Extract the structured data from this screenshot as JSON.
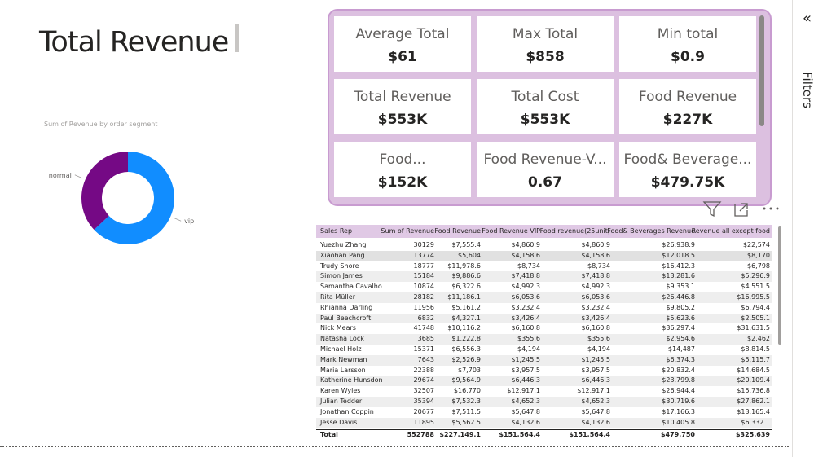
{
  "header": {
    "title": "Total Revenue"
  },
  "chart_data": {
    "type": "donut",
    "title": "Sum of Revenue by order segment",
    "categories": [
      "vip",
      "normal"
    ],
    "values": [
      63,
      37
    ],
    "colors": [
      "#118DFF",
      "#750985"
    ]
  },
  "cards": [
    {
      "label": "Average Total",
      "value": "$61"
    },
    {
      "label": "Max Total",
      "value": "$858"
    },
    {
      "label": "Min total",
      "value": "$0.9"
    },
    {
      "label": "Total Revenue",
      "value": "$553K"
    },
    {
      "label": "Total Cost",
      "value": "$553K"
    },
    {
      "label": "Food Revenue",
      "value": "$227K"
    },
    {
      "label": "Food...",
      "value": "$152K"
    },
    {
      "label": "Food Revenue-V...",
      "value": "0.67"
    },
    {
      "label": "Food& Beverage...",
      "value": "$479.75K"
    }
  ],
  "table": {
    "columns": [
      "Sales Rep",
      "Sum of Revenue",
      "Food Revenue",
      "Food Revenue VIP",
      "Food revenue(25unit)",
      "Food& Beverages Revenue",
      "Revenue all except food"
    ],
    "rows": [
      [
        "Yuezhu Zhang",
        "30129",
        "$7,555.4",
        "$4,860.9",
        "$4,860.9",
        "$26,938.9",
        "$22,574"
      ],
      [
        "Xiaohan Pang",
        "13774",
        "$5,604",
        "$4,158.6",
        "$4,158.6",
        "$12,018.5",
        "$8,170"
      ],
      [
        "Trudy Shore",
        "18777",
        "$11,978.6",
        "$8,734",
        "$8,734",
        "$16,412.3",
        "$6,798"
      ],
      [
        "Simon James",
        "15184",
        "$9,886.6",
        "$7,418.8",
        "$7,418.8",
        "$13,281.6",
        "$5,296.9"
      ],
      [
        "Samantha Cavalho",
        "10874",
        "$6,322.6",
        "$4,992.3",
        "$4,992.3",
        "$9,353.1",
        "$4,551.5"
      ],
      [
        "Rita Müller",
        "28182",
        "$11,186.1",
        "$6,053.6",
        "$6,053.6",
        "$26,446.8",
        "$16,995.5"
      ],
      [
        "Rhianna Darling",
        "11956",
        "$5,161.2",
        "$3,232.4",
        "$3,232.4",
        "$9,805.2",
        "$6,794.4"
      ],
      [
        "Paul Beechcroft",
        "6832",
        "$4,327.1",
        "$3,426.4",
        "$3,426.4",
        "$5,623.6",
        "$2,505.1"
      ],
      [
        "Nick Mears",
        "41748",
        "$10,116.2",
        "$6,160.8",
        "$6,160.8",
        "$36,297.4",
        "$31,631.5"
      ],
      [
        "Natasha Lock",
        "3685",
        "$1,222.8",
        "$355.6",
        "$355.6",
        "$2,954.6",
        "$2,462"
      ],
      [
        "Michael Holz",
        "15371",
        "$6,556.3",
        "$4,194",
        "$4,194",
        "$14,487",
        "$8,814.5"
      ],
      [
        "Mark Newman",
        "7643",
        "$2,526.9",
        "$1,245.5",
        "$1,245.5",
        "$6,374.3",
        "$5,115.7"
      ],
      [
        "Maria Larsson",
        "22388",
        "$7,703",
        "$3,957.5",
        "$3,957.5",
        "$20,832.4",
        "$14,684.5"
      ],
      [
        "Katherine Hunsdon",
        "29674",
        "$9,564.9",
        "$6,446.3",
        "$6,446.3",
        "$23,799.8",
        "$20,109.4"
      ],
      [
        "Karen Wyles",
        "32507",
        "$16,770",
        "$12,917.1",
        "$12,917.1",
        "$26,944.4",
        "$15,736.8"
      ],
      [
        "Julian Tedder",
        "35394",
        "$7,532.3",
        "$4,652.3",
        "$4,652.3",
        "$30,719.6",
        "$27,862.1"
      ],
      [
        "Jonathan Coppin",
        "20677",
        "$7,511.5",
        "$5,647.8",
        "$5,647.8",
        "$17,166.3",
        "$13,165.4"
      ],
      [
        "Jesse Davis",
        "11895",
        "$5,562.5",
        "$4,132.6",
        "$4,132.6",
        "$10,405.8",
        "$6,332.1"
      ]
    ],
    "total": [
      "Total",
      "552788",
      "$227,149.1",
      "$151,564.4",
      "$151,564.4",
      "$479,750",
      "$325,639"
    ]
  },
  "pane": {
    "title": "Filters"
  }
}
